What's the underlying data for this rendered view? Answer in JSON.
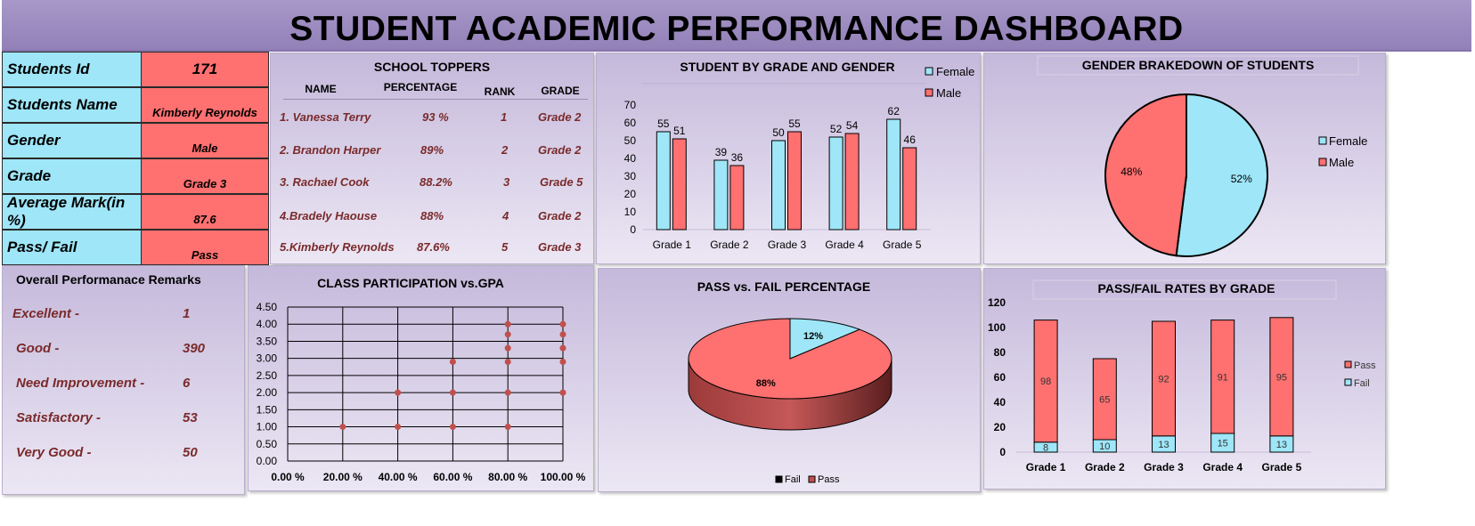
{
  "title": "STUDENT ACADEMIC PERFORMANCE DASHBOARD",
  "student_info": {
    "rows": [
      {
        "label": "Students Id",
        "value": "171"
      },
      {
        "label": "Students Name",
        "value": "Kimberly Reynolds"
      },
      {
        "label": "Gender",
        "value": "Male"
      },
      {
        "label": "Grade",
        "value": "Grade 3"
      },
      {
        "label": "Average Mark(in %)",
        "value": "87.6"
      },
      {
        "label": "Pass/ Fail",
        "value": "Pass"
      }
    ]
  },
  "toppers": {
    "title": "SCHOOL TOPPERS",
    "headers": [
      "NAME",
      "PERCENTAGE",
      "RANK",
      "GRADE"
    ],
    "rows": [
      {
        "name": "1. Vanessa Terry",
        "percentage": "93 %",
        "rank": "1",
        "grade": "Grade 2"
      },
      {
        "name": "2. Brandon Harper",
        "percentage": "89%",
        "rank": "2",
        "grade": "Grade 2"
      },
      {
        "name": "3. Rachael Cook",
        "percentage": "88.2%",
        "rank": "3",
        "grade": "Grade 5"
      },
      {
        "name": "4.Bradely Haouse",
        "percentage": "88%",
        "rank": "4",
        "grade": "Grade 2"
      },
      {
        "name": "5.Kimberly Reynolds",
        "percentage": "87.6%",
        "rank": "5",
        "grade": "Grade 3"
      }
    ]
  },
  "remarks": {
    "title": "Overall Performanace Remarks",
    "rows": [
      {
        "label": "Excellent -",
        "count": "1"
      },
      {
        "label": "Good -",
        "count": "390"
      },
      {
        "label": "Need Improvement -",
        "count": "6"
      },
      {
        "label": "Satisfactory -",
        "count": "53"
      },
      {
        "label": "Very Good -",
        "count": "50"
      }
    ]
  },
  "colors": {
    "female": "#9ee6f8",
    "male": "#ff7070",
    "pass": "#ff7070",
    "fail": "#9ee6f8"
  },
  "chart_data": [
    {
      "id": "grade_gender",
      "type": "bar",
      "title": "STUDENT BY GRADE AND GENDER",
      "categories": [
        "Grade 1",
        "Grade 2",
        "Grade 3",
        "Grade 4",
        "Grade 5"
      ],
      "series": [
        {
          "name": "Female",
          "values": [
            55,
            39,
            50,
            52,
            62
          ]
        },
        {
          "name": "Male",
          "values": [
            51,
            36,
            55,
            54,
            46
          ]
        }
      ],
      "ylim": [
        0,
        70
      ],
      "yticks": [
        0,
        10,
        20,
        30,
        40,
        50,
        60,
        70
      ],
      "legend": "top-right"
    },
    {
      "id": "gender_pie",
      "type": "pie",
      "title": "GENDER BRAKEDOWN OF STUDENTS",
      "labels": [
        "Female",
        "Male"
      ],
      "values": [
        52,
        48
      ],
      "value_labels": [
        "52%",
        "48%"
      ],
      "legend": "right"
    },
    {
      "id": "participation_gpa",
      "type": "scatter",
      "title": "CLASS PARTICIPATION vs.GPA",
      "xticks": [
        "0.00 %",
        "20.00 %",
        "40.00 %",
        "60.00 %",
        "80.00 %",
        "100.00 %"
      ],
      "yticks": [
        "0.00",
        "0.50",
        "1.00",
        "1.50",
        "2.00",
        "2.50",
        "3.00",
        "3.50",
        "4.00",
        "4.50"
      ],
      "xlim": [
        0,
        100
      ],
      "ylim": [
        0,
        4.5
      ],
      "points": [
        [
          20,
          1.0
        ],
        [
          40,
          1.0
        ],
        [
          60,
          1.0
        ],
        [
          80,
          1.0
        ],
        [
          40,
          2.0
        ],
        [
          60,
          2.0
        ],
        [
          80,
          2.0
        ],
        [
          100,
          2.0
        ],
        [
          60,
          2.9
        ],
        [
          80,
          2.9
        ],
        [
          100,
          2.9
        ],
        [
          80,
          3.3
        ],
        [
          100,
          3.3
        ],
        [
          80,
          3.7
        ],
        [
          100,
          3.7
        ],
        [
          80,
          4.0
        ],
        [
          100,
          4.0
        ]
      ],
      "grid": true
    },
    {
      "id": "pass_fail_pie",
      "type": "pie",
      "title": "PASS vs. FAIL PERCENTAGE",
      "labels": [
        "Fail",
        "Pass"
      ],
      "values": [
        12,
        88
      ],
      "value_labels": [
        "12%",
        "88%"
      ],
      "legend": "bottom"
    },
    {
      "id": "pass_fail_grade",
      "type": "bar",
      "stacked": true,
      "title": "PASS/FAIL RATES BY GRADE",
      "categories": [
        "Grade 1",
        "Grade 2",
        "Grade 3",
        "Grade 4",
        "Grade 5"
      ],
      "series": [
        {
          "name": "Fail",
          "values": [
            8,
            10,
            13,
            15,
            13
          ]
        },
        {
          "name": "Pass",
          "values": [
            98,
            65,
            92,
            91,
            95
          ]
        }
      ],
      "ylim": [
        0,
        120
      ],
      "yticks": [
        0,
        20,
        40,
        60,
        80,
        100,
        120
      ],
      "legend": "right"
    }
  ]
}
